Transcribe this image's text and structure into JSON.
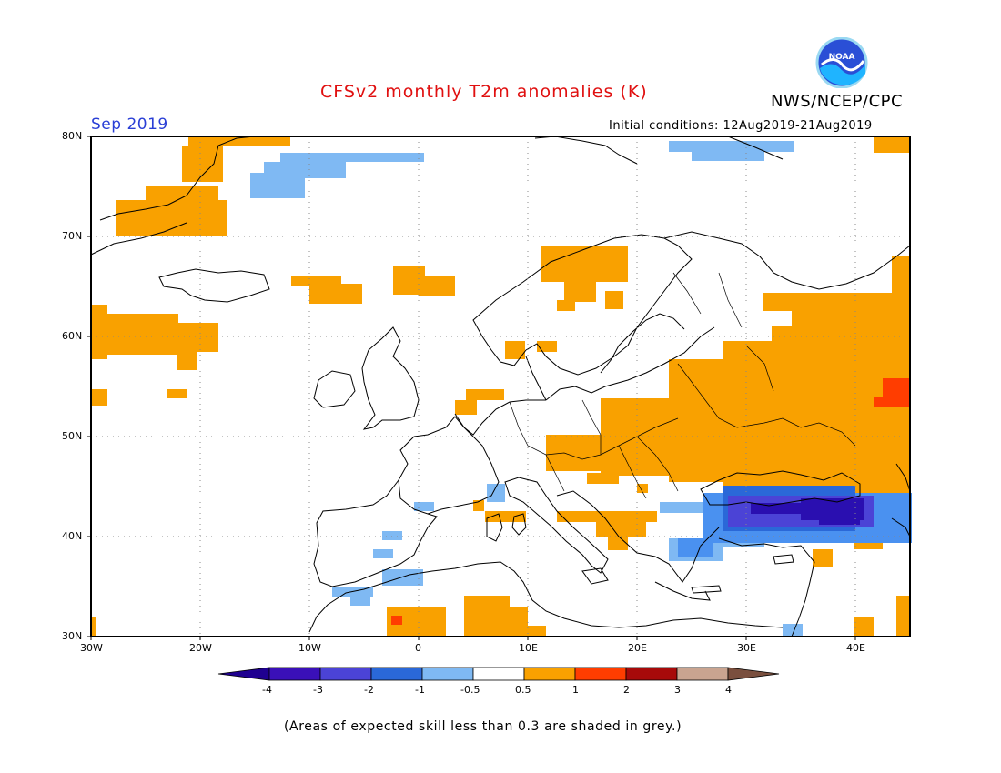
{
  "header": {
    "title": "CFSv2 monthly T2m anomalies (K)",
    "agency": "NWS/NCEP/CPC",
    "logo_text": "NOAA",
    "period": "Sep 2019",
    "initial_conditions": "Initial conditions: 12Aug2019-21Aug2019"
  },
  "map": {
    "lat_labels": [
      "80N",
      "70N",
      "60N",
      "50N",
      "40N",
      "30N"
    ],
    "lon_labels": [
      "30W",
      "20W",
      "10W",
      "0",
      "10E",
      "20E",
      "30E",
      "40E"
    ],
    "lat_range": [
      30,
      80
    ],
    "lon_range": [
      -30,
      45
    ],
    "grid": "dotted",
    "anomaly_regions": [
      {
        "name": "Greenland coast",
        "class": "warm",
        "color": "#f9a100"
      },
      {
        "name": "Western Russia",
        "class": "warm",
        "color": "#f9a100"
      },
      {
        "name": "Central Russia core",
        "class": "hot",
        "color": "#ff3d00"
      },
      {
        "name": "Black Sea / Turkey",
        "class": "cold",
        "color": "#2a0fb0"
      },
      {
        "name": "Iberia / North Africa",
        "class": "cool",
        "color": "#4a91f0"
      }
    ]
  },
  "colorbar": {
    "labels": [
      "-4",
      "-3",
      "-2",
      "-1",
      "-0.5",
      "0.5",
      "1",
      "2",
      "3",
      "4"
    ],
    "colors": [
      "#3a10b8",
      "#4b43d6",
      "#2a68d8",
      "#4a91f0",
      "#7fb9f3",
      "#ffffff",
      "#f9a100",
      "#ff3d00",
      "#a70a0a",
      "#c9a490"
    ],
    "end_colors": [
      "#1f0090",
      "#7a4f3e"
    ]
  },
  "footer": {
    "note": "(Areas of expected skill less than 0.3 are shaded in grey.)"
  }
}
